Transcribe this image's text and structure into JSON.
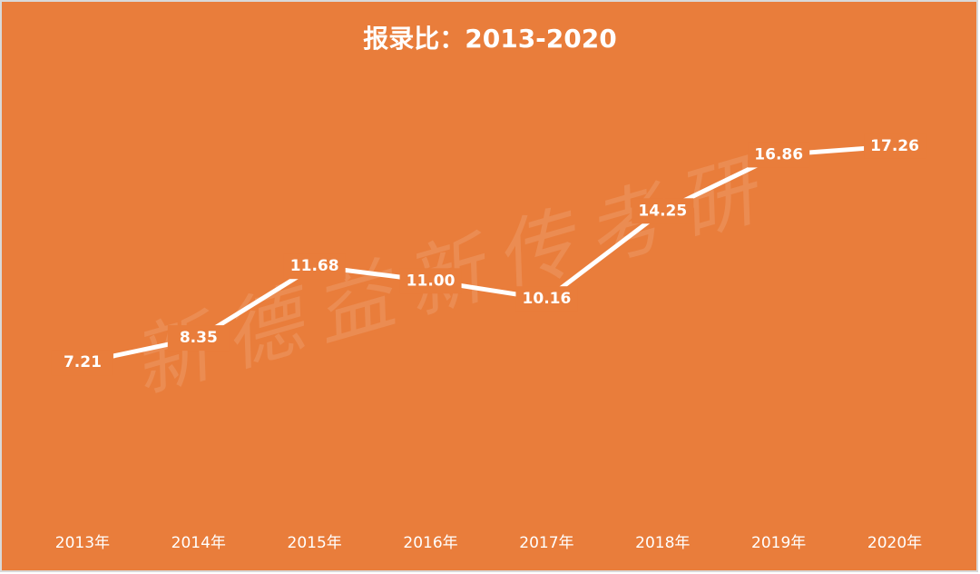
{
  "chart_data": {
    "type": "line",
    "title": "报录比：2013-2020",
    "categories": [
      "2013年",
      "2014年",
      "2015年",
      "2016年",
      "2017年",
      "2018年",
      "2019年",
      "2020年"
    ],
    "values": [
      7.21,
      8.35,
      11.68,
      11.0,
      10.16,
      14.25,
      16.86,
      17.26
    ],
    "value_labels": [
      "7.21",
      "8.35",
      "11.68",
      "11.00",
      "10.16",
      "14.25",
      "16.86",
      "17.26"
    ],
    "color": "#ffffff",
    "background": "#e97d3b",
    "ylim": [
      0,
      20
    ],
    "watermark": "新德益新传考研"
  }
}
